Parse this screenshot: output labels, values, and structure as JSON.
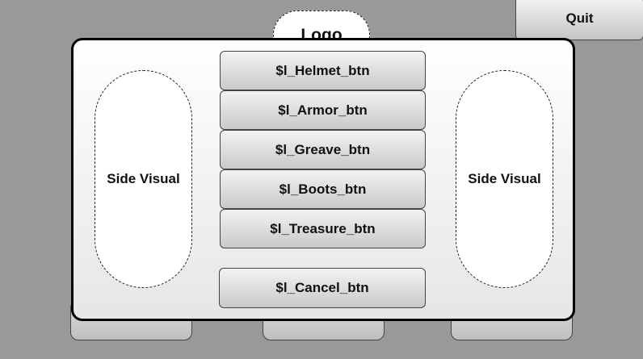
{
  "header": {
    "logo_text": "Logo",
    "quit_label": "Quit"
  },
  "panel": {
    "side_visual_left": "Side Visual",
    "side_visual_right": "Side Visual",
    "buttons": [
      {
        "label": "$l_Helmet_btn"
      },
      {
        "label": "$l_Armor_btn"
      },
      {
        "label": "$l_Greave_btn"
      },
      {
        "label": "$l_Boots_btn"
      },
      {
        "label": "$l_Treasure_btn"
      }
    ],
    "cancel_label": "$l_Cancel_btn"
  },
  "colors": {
    "background": "#999999",
    "panel_border": "#000000",
    "button_gradient_top": "#f3f3f3",
    "button_gradient_bottom": "#c9c9c9"
  }
}
